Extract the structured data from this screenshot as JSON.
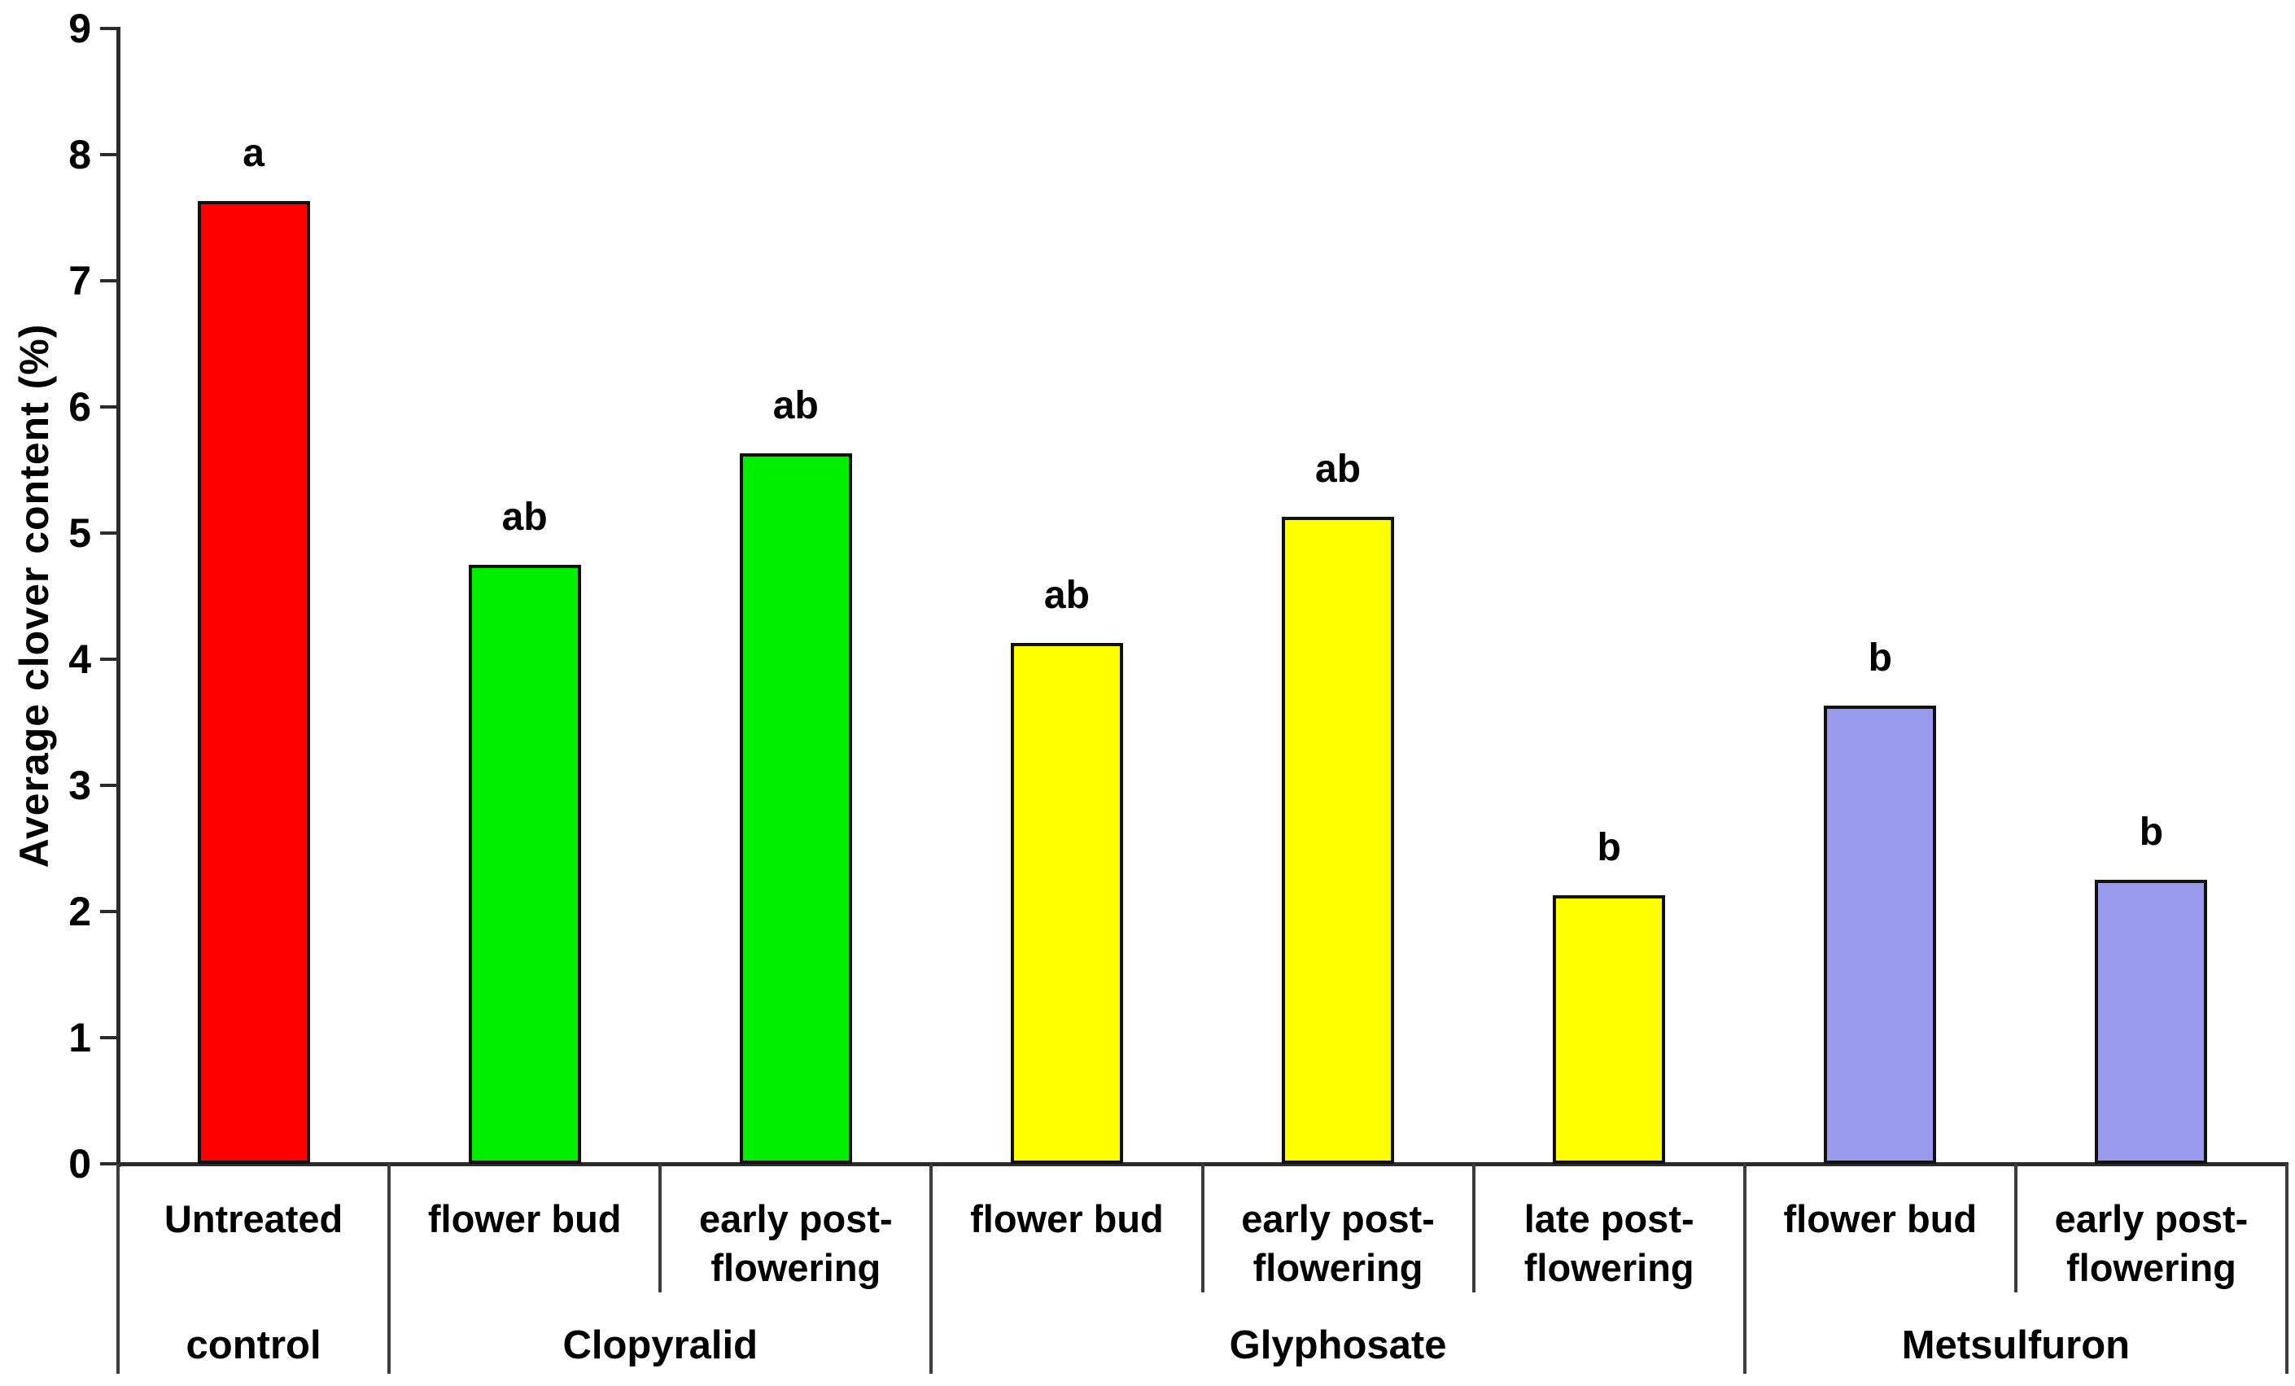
{
  "chart_data": {
    "type": "bar",
    "title": "",
    "xlabel": "",
    "ylabel": "Average clover content (%)",
    "ylim": [
      0,
      9
    ],
    "yticks": [
      0,
      1,
      2,
      3,
      4,
      5,
      6,
      7,
      8,
      9
    ],
    "grid": false,
    "legend": null,
    "groups": [
      {
        "label": "control",
        "color": "#ff0000",
        "bars": [
          {
            "treatment_lines": [
              "Untreated"
            ],
            "value": 7.63,
            "sig": "a"
          }
        ]
      },
      {
        "label": "Clopyralid",
        "color": "#00ee00",
        "bars": [
          {
            "treatment_lines": [
              "flower bud"
            ],
            "value": 4.75,
            "sig": "ab"
          },
          {
            "treatment_lines": [
              "early post-",
              "flowering"
            ],
            "value": 5.63,
            "sig": "ab"
          }
        ]
      },
      {
        "label": "Glyphosate",
        "color": "#ffff00",
        "bars": [
          {
            "treatment_lines": [
              "flower bud"
            ],
            "value": 4.13,
            "sig": "ab"
          },
          {
            "treatment_lines": [
              "early post-",
              "flowering"
            ],
            "value": 5.13,
            "sig": "ab"
          },
          {
            "treatment_lines": [
              "late post-",
              "flowering"
            ],
            "value": 2.13,
            "sig": "b"
          }
        ]
      },
      {
        "label": "Metsulfuron",
        "color": "#9999ee",
        "bars": [
          {
            "treatment_lines": [
              "flower bud"
            ],
            "value": 3.63,
            "sig": "b"
          },
          {
            "treatment_lines": [
              "early post-",
              "flowering"
            ],
            "value": 2.25,
            "sig": "b"
          }
        ]
      }
    ]
  }
}
